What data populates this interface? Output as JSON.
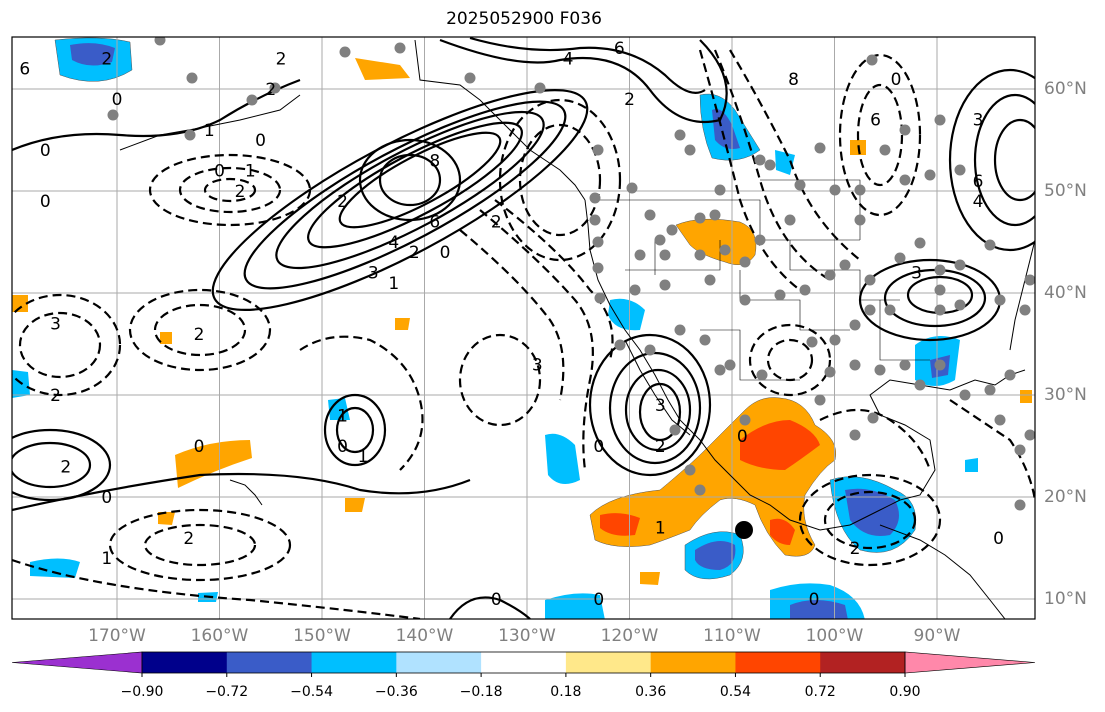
{
  "title": "2025052900 F036",
  "lat_labels": [
    "60°N",
    "50°N",
    "40°N",
    "30°N",
    "20°N",
    "10°N"
  ],
  "lon_labels": [
    "170°W",
    "160°W",
    "150°W",
    "140°W",
    "130°W",
    "120°W",
    "110°W",
    "100°W",
    "90°W"
  ],
  "colorbar": {
    "tick_labels": [
      "−0.90",
      "−0.72",
      "−0.54",
      "−0.36",
      "−0.18",
      "0.18",
      "0.36",
      "0.54",
      "0.72",
      "0.90"
    ],
    "colors": [
      "#9b30d0",
      "#00008b",
      "#3a5cc8",
      "#00bfff",
      "#b0e2ff",
      "#ffffff",
      "#ffe88a",
      "#ffa500",
      "#ff4500",
      "#b22222",
      "#ff88aa"
    ]
  },
  "contour_labels": [
    {
      "text": "6",
      "lon": -179,
      "lat": 62
    },
    {
      "text": "2",
      "lon": -171,
      "lat": 63
    },
    {
      "text": "2",
      "lon": -155,
      "lat": 60
    },
    {
      "text": "2",
      "lon": -154,
      "lat": 63
    },
    {
      "text": "0",
      "lon": -170,
      "lat": 59
    },
    {
      "text": "1",
      "lon": -161,
      "lat": 56
    },
    {
      "text": "0",
      "lon": -156,
      "lat": 55
    },
    {
      "text": "0",
      "lon": -177,
      "lat": 54
    },
    {
      "text": "0",
      "lon": -160,
      "lat": 52
    },
    {
      "text": "1",
      "lon": -157,
      "lat": 52
    },
    {
      "text": "2",
      "lon": -158,
      "lat": 50
    },
    {
      "text": "0",
      "lon": -177,
      "lat": 49
    },
    {
      "text": "8",
      "lon": -139,
      "lat": 53
    },
    {
      "text": "6",
      "lon": -139,
      "lat": 47
    },
    {
      "text": "4",
      "lon": -143,
      "lat": 45
    },
    {
      "text": "3",
      "lon": -145,
      "lat": 42
    },
    {
      "text": "2",
      "lon": -148,
      "lat": 49
    },
    {
      "text": "2",
      "lon": -141,
      "lat": 44
    },
    {
      "text": "0",
      "lon": -138,
      "lat": 44
    },
    {
      "text": "1",
      "lon": -143,
      "lat": 41
    },
    {
      "text": "2",
      "lon": -133,
      "lat": 47
    },
    {
      "text": "4",
      "lon": -126,
      "lat": 63
    },
    {
      "text": "6",
      "lon": -121,
      "lat": 64
    },
    {
      "text": "2",
      "lon": -120,
      "lat": 59
    },
    {
      "text": "8",
      "lon": -104,
      "lat": 61
    },
    {
      "text": "0",
      "lon": -94,
      "lat": 61
    },
    {
      "text": "6",
      "lon": -96,
      "lat": 57
    },
    {
      "text": "3",
      "lon": -86,
      "lat": 57
    },
    {
      "text": "6",
      "lon": -86,
      "lat": 51
    },
    {
      "text": "4",
      "lon": -86,
      "lat": 49
    },
    {
      "text": "3",
      "lon": -92,
      "lat": 42
    },
    {
      "text": "2",
      "lon": -162,
      "lat": 36
    },
    {
      "text": "3",
      "lon": -176,
      "lat": 37
    },
    {
      "text": "2",
      "lon": -176,
      "lat": 30
    },
    {
      "text": "3",
      "lon": -129,
      "lat": 33
    },
    {
      "text": "1",
      "lon": -148,
      "lat": 28
    },
    {
      "text": "0",
      "lon": -148,
      "lat": 25
    },
    {
      "text": "1",
      "lon": -146,
      "lat": 24
    },
    {
      "text": "0",
      "lon": -162,
      "lat": 25
    },
    {
      "text": "2",
      "lon": -175,
      "lat": 23
    },
    {
      "text": "0",
      "lon": -171,
      "lat": 20
    },
    {
      "text": "1",
      "lon": -171,
      "lat": 14
    },
    {
      "text": "2",
      "lon": -163,
      "lat": 16
    },
    {
      "text": "0",
      "lon": -123,
      "lat": 25
    },
    {
      "text": "3",
      "lon": -117,
      "lat": 29
    },
    {
      "text": "2",
      "lon": -117,
      "lat": 25
    },
    {
      "text": "0",
      "lon": -109,
      "lat": 26
    },
    {
      "text": "1",
      "lon": -117,
      "lat": 17
    },
    {
      "text": "2",
      "lon": -98,
      "lat": 15
    },
    {
      "text": "0",
      "lon": -123,
      "lat": 10
    },
    {
      "text": "0",
      "lon": -133,
      "lat": 10
    },
    {
      "text": "0",
      "lon": -102,
      "lat": 10
    },
    {
      "text": "0",
      "lon": -84,
      "lat": 16
    }
  ]
}
